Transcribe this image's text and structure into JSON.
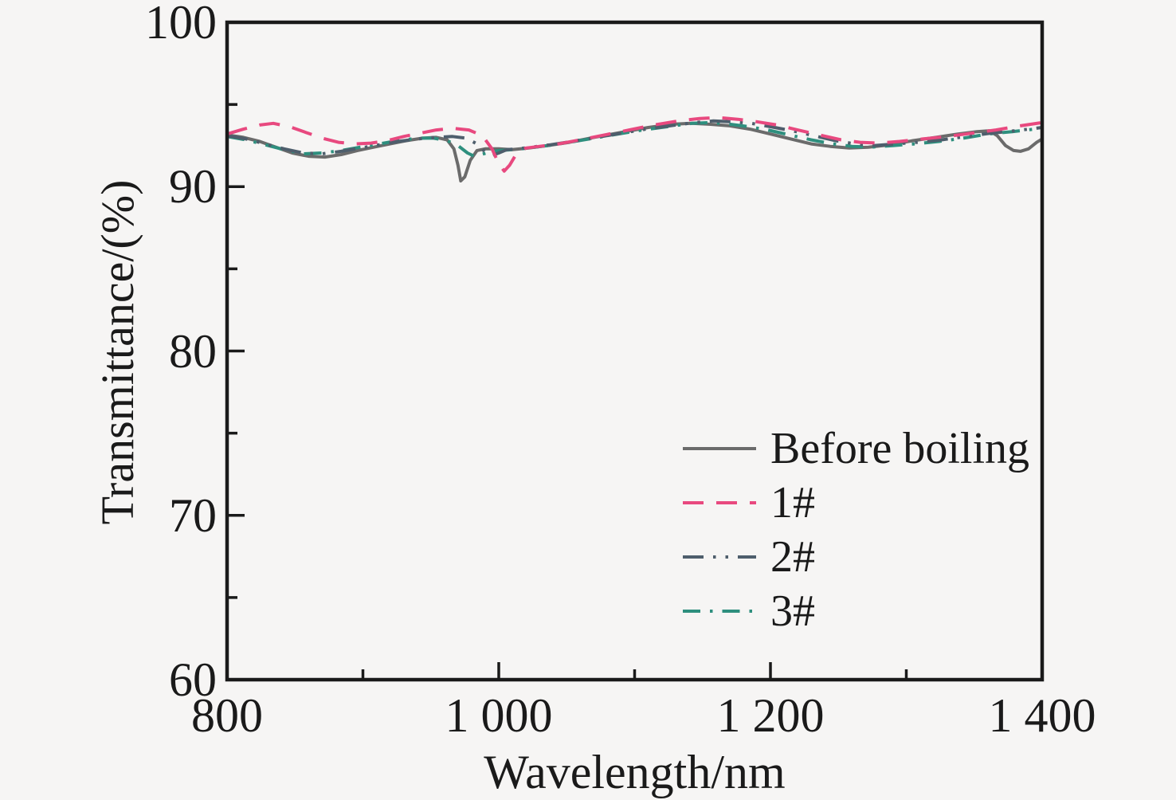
{
  "figure": {
    "background_color": "#f6f5f4",
    "frame_color": "#1a1a1a",
    "text_color": "#1a1a1a"
  },
  "chart_data": {
    "type": "line",
    "title": "",
    "xlabel": "Wavelength/nm",
    "ylabel": "Transmittance/(%)",
    "xlim": [
      800,
      1400
    ],
    "ylim": [
      60,
      100
    ],
    "grid": false,
    "legend_position": "inside-lower-right",
    "x_ticks_major": [
      800,
      1000,
      1200,
      1400
    ],
    "x_ticks_minor": [
      900,
      1100,
      1300
    ],
    "x_tick_labels": [
      "800",
      "1 000",
      "1 200",
      "1 400"
    ],
    "y_ticks_major": [
      100,
      90,
      80,
      70,
      60
    ],
    "y_ticks_minor": [
      95,
      85,
      75,
      65
    ],
    "y_tick_labels": [
      "100",
      "90",
      "80",
      "70",
      "60"
    ],
    "series": [
      {
        "name": "Before boiling",
        "color": "#6b6b6b",
        "line_style": "solid",
        "x": [
          800,
          812,
          824,
          836,
          848,
          860,
          872,
          884,
          896,
          908,
          920,
          932,
          944,
          954,
          962,
          967,
          970,
          972,
          975,
          979,
          984,
          990,
          1000,
          1010,
          1022,
          1036,
          1052,
          1070,
          1090,
          1110,
          1128,
          1142,
          1155,
          1170,
          1185,
          1200,
          1215,
          1230,
          1244,
          1258,
          1272,
          1288,
          1305,
          1322,
          1338,
          1352,
          1361,
          1367,
          1373,
          1379,
          1384,
          1390,
          1396,
          1400
        ],
        "y": [
          93.15,
          93.0,
          92.75,
          92.4,
          92.05,
          91.85,
          91.8,
          91.95,
          92.2,
          92.4,
          92.6,
          92.8,
          92.95,
          93.0,
          92.85,
          92.3,
          91.3,
          90.35,
          90.6,
          91.6,
          92.2,
          92.3,
          92.3,
          92.25,
          92.35,
          92.5,
          92.7,
          93.0,
          93.3,
          93.6,
          93.8,
          93.85,
          93.8,
          93.7,
          93.5,
          93.2,
          92.9,
          92.6,
          92.45,
          92.35,
          92.4,
          92.55,
          92.8,
          93.0,
          93.2,
          93.35,
          93.4,
          93.1,
          92.5,
          92.2,
          92.15,
          92.3,
          92.7,
          92.9
        ]
      },
      {
        "name": "1#",
        "color": "#e8497f",
        "line_style": "dashed",
        "x": [
          800,
          812,
          824,
          834,
          846,
          858,
          870,
          882,
          894,
          906,
          918,
          930,
          942,
          954,
          966,
          978,
          988,
          995,
          1000,
          1004,
          1008,
          1013,
          1020,
          1030,
          1044,
          1060,
          1078,
          1096,
          1114,
          1132,
          1148,
          1162,
          1176,
          1190,
          1205,
          1220,
          1236,
          1252,
          1266,
          1280,
          1295,
          1312,
          1330,
          1348,
          1366,
          1384,
          1400
        ],
        "y": [
          93.2,
          93.5,
          93.75,
          93.85,
          93.65,
          93.3,
          92.95,
          92.7,
          92.6,
          92.65,
          92.8,
          93.05,
          93.25,
          93.45,
          93.55,
          93.45,
          93.1,
          92.3,
          91.4,
          90.95,
          91.3,
          92.0,
          92.35,
          92.45,
          92.6,
          92.85,
          93.15,
          93.45,
          93.75,
          94.0,
          94.15,
          94.2,
          94.1,
          93.95,
          93.75,
          93.45,
          93.15,
          92.85,
          92.7,
          92.65,
          92.75,
          92.9,
          93.05,
          93.25,
          93.45,
          93.7,
          93.9
        ]
      },
      {
        "name": "2#",
        "color": "#4e5e6c",
        "line_style": "dash-dot-dot",
        "x": [
          800,
          814,
          828,
          842,
          856,
          870,
          884,
          898,
          912,
          926,
          940,
          954,
          966,
          976,
          984,
          990,
          995,
          1000,
          1006,
          1014,
          1024,
          1038,
          1054,
          1072,
          1090,
          1108,
          1126,
          1144,
          1158,
          1172,
          1186,
          1200,
          1216,
          1232,
          1248,
          1262,
          1276,
          1292,
          1308,
          1326,
          1344,
          1362,
          1380,
          1400
        ],
        "y": [
          93.1,
          92.9,
          92.6,
          92.3,
          92.05,
          92.0,
          92.15,
          92.35,
          92.55,
          92.75,
          92.9,
          93.0,
          93.05,
          92.95,
          92.6,
          92.1,
          91.9,
          92.05,
          92.25,
          92.3,
          92.4,
          92.55,
          92.75,
          93.0,
          93.25,
          93.5,
          93.7,
          93.9,
          94.0,
          93.95,
          93.85,
          93.65,
          93.4,
          93.1,
          92.8,
          92.6,
          92.5,
          92.6,
          92.7,
          92.85,
          93.05,
          93.25,
          93.4,
          93.6
        ]
      },
      {
        "name": "3#",
        "color": "#2e8f7e",
        "line_style": "dash-dot",
        "x": [
          800,
          814,
          828,
          842,
          856,
          870,
          884,
          898,
          912,
          926,
          940,
          952,
          962,
          970,
          977,
          982,
          987,
          993,
          1000,
          1010,
          1022,
          1036,
          1052,
          1070,
          1088,
          1106,
          1124,
          1142,
          1156,
          1170,
          1184,
          1198,
          1214,
          1230,
          1246,
          1260,
          1274,
          1290,
          1306,
          1324,
          1342,
          1360,
          1378,
          1400
        ],
        "y": [
          93.05,
          92.85,
          92.55,
          92.25,
          92.0,
          92.05,
          92.2,
          92.4,
          92.6,
          92.8,
          92.95,
          92.95,
          92.8,
          92.5,
          92.05,
          91.85,
          91.95,
          92.1,
          92.2,
          92.25,
          92.35,
          92.5,
          92.7,
          92.95,
          93.2,
          93.45,
          93.65,
          93.85,
          93.9,
          93.8,
          93.65,
          93.45,
          93.15,
          92.85,
          92.6,
          92.45,
          92.4,
          92.5,
          92.6,
          92.75,
          92.95,
          93.2,
          93.35,
          93.55
        ]
      }
    ]
  }
}
